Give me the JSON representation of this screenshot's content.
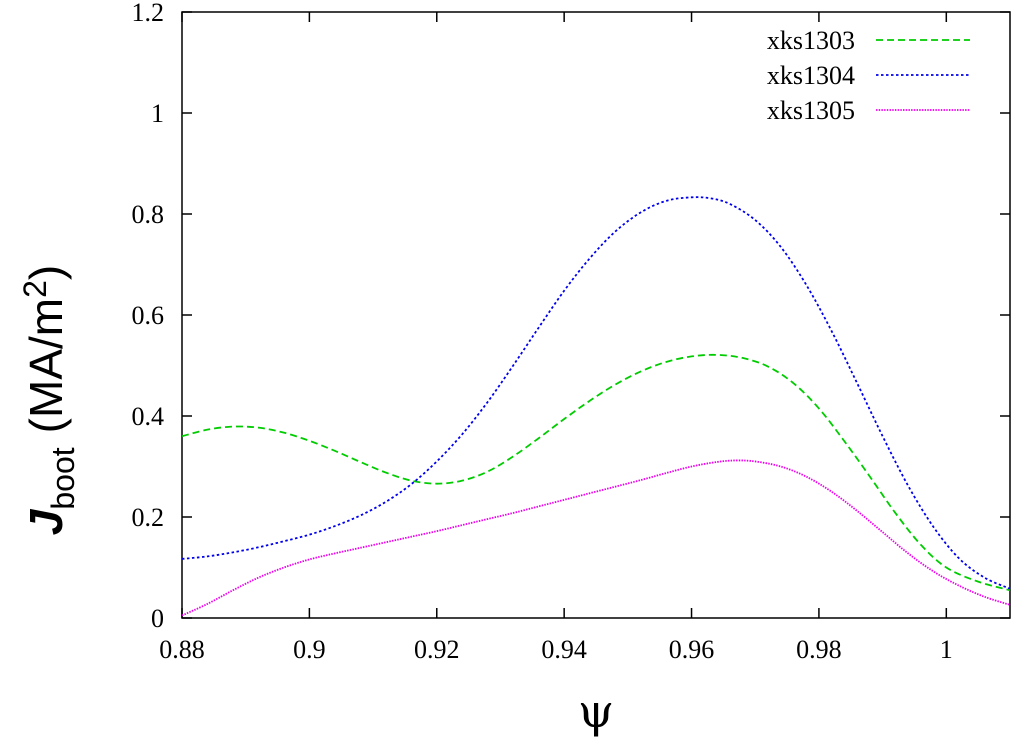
{
  "chart_data": {
    "type": "line",
    "title": "",
    "xlabel": "ψ",
    "ylabel": {
      "symbol": "J",
      "subscript": "boot",
      "unit_prefix": "(MA/m",
      "unit_power": "2",
      "unit_suffix": ")"
    },
    "xlim": [
      0.88,
      1.01
    ],
    "ylim": [
      0,
      1.2
    ],
    "xticks": [
      0.88,
      0.9,
      0.92,
      0.94,
      0.96,
      0.98,
      1
    ],
    "xtick_labels": [
      "0.88",
      "0.9",
      "0.92",
      "0.94",
      "0.96",
      "0.98",
      "1"
    ],
    "yticks": [
      0,
      0.2,
      0.4,
      0.6,
      0.8,
      1,
      1.2
    ],
    "ytick_labels": [
      "0",
      "0.2",
      "0.4",
      "0.6",
      "0.8",
      "1",
      "1.2"
    ],
    "grid": false,
    "legend": "top-right",
    "series": [
      {
        "name": "xks1303",
        "color": "#00cc00",
        "dash": "dashed",
        "x": [
          0.88,
          0.884,
          0.888,
          0.892,
          0.896,
          0.9,
          0.904,
          0.908,
          0.912,
          0.916,
          0.92,
          0.924,
          0.928,
          0.932,
          0.936,
          0.94,
          0.944,
          0.948,
          0.952,
          0.956,
          0.96,
          0.964,
          0.968,
          0.972,
          0.976,
          0.98,
          0.984,
          0.988,
          0.992,
          0.996,
          1.0,
          1.005,
          1.01
        ],
        "y": [
          0.36,
          0.373,
          0.379,
          0.377,
          0.367,
          0.351,
          0.331,
          0.309,
          0.288,
          0.272,
          0.266,
          0.272,
          0.29,
          0.32,
          0.356,
          0.394,
          0.43,
          0.462,
          0.488,
          0.507,
          0.518,
          0.521,
          0.515,
          0.498,
          0.465,
          0.415,
          0.35,
          0.28,
          0.208,
          0.145,
          0.1,
          0.072,
          0.055
        ]
      },
      {
        "name": "xks1304",
        "color": "#0000ee",
        "dash": "dotted",
        "x": [
          0.88,
          0.884,
          0.888,
          0.892,
          0.896,
          0.9,
          0.904,
          0.908,
          0.912,
          0.916,
          0.92,
          0.924,
          0.928,
          0.932,
          0.936,
          0.94,
          0.944,
          0.948,
          0.952,
          0.956,
          0.96,
          0.963,
          0.966,
          0.97,
          0.974,
          0.978,
          0.982,
          0.986,
          0.99,
          0.994,
          0.998,
          1.002,
          1.006,
          1.01
        ],
        "y": [
          0.117,
          0.122,
          0.13,
          0.14,
          0.152,
          0.165,
          0.182,
          0.203,
          0.23,
          0.265,
          0.31,
          0.364,
          0.428,
          0.5,
          0.575,
          0.648,
          0.712,
          0.765,
          0.803,
          0.826,
          0.833,
          0.831,
          0.82,
          0.788,
          0.735,
          0.66,
          0.568,
          0.465,
          0.36,
          0.262,
          0.18,
          0.118,
          0.08,
          0.058
        ]
      },
      {
        "name": "xks1305",
        "color": "#ee00ee",
        "dash": "finedot",
        "x": [
          0.88,
          0.884,
          0.888,
          0.892,
          0.896,
          0.9,
          0.904,
          0.908,
          0.912,
          0.916,
          0.92,
          0.924,
          0.928,
          0.932,
          0.936,
          0.94,
          0.944,
          0.948,
          0.952,
          0.956,
          0.96,
          0.964,
          0.967,
          0.97,
          0.974,
          0.978,
          0.982,
          0.986,
          0.99,
          0.994,
          0.998,
          1.002,
          1.006,
          1.01
        ],
        "y": [
          0.005,
          0.028,
          0.055,
          0.08,
          0.1,
          0.116,
          0.128,
          0.139,
          0.15,
          0.161,
          0.172,
          0.184,
          0.196,
          0.208,
          0.221,
          0.234,
          0.247,
          0.26,
          0.273,
          0.287,
          0.3,
          0.309,
          0.312,
          0.31,
          0.3,
          0.28,
          0.25,
          0.212,
          0.17,
          0.128,
          0.092,
          0.064,
          0.042,
          0.026
        ]
      }
    ]
  }
}
